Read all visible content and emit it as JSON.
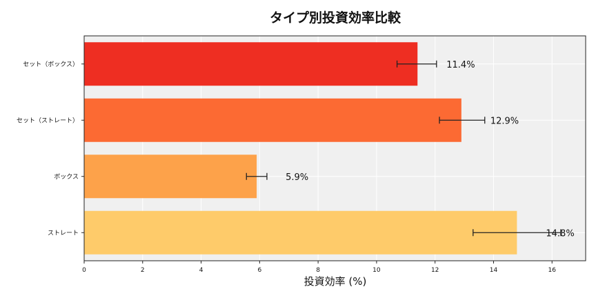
{
  "chart_data": {
    "type": "bar",
    "orientation": "horizontal",
    "title": "タイプ別投資効率比較",
    "xlabel": "投資効率 (%)",
    "ylabel": "",
    "xlim": [
      0,
      17.15
    ],
    "xticks": [
      0,
      2,
      4,
      6,
      8,
      10,
      12,
      14,
      16
    ],
    "grid": true,
    "categories": [
      "セット（ボックス）",
      "セット（ストレート）",
      "ボックス",
      "ストレート"
    ],
    "values": [
      11.4,
      12.9,
      5.9,
      14.8
    ],
    "error_low": [
      10.7,
      12.15,
      5.55,
      13.3
    ],
    "error_high": [
      12.05,
      13.7,
      6.25,
      16.3
    ],
    "data_labels": [
      "11.4%",
      "12.9%",
      "5.9%",
      "14.8%"
    ],
    "colors": [
      "#EE2E22",
      "#FC6A33",
      "#FDA24A",
      "#FECB6A"
    ],
    "background": "#F0F0F0"
  }
}
